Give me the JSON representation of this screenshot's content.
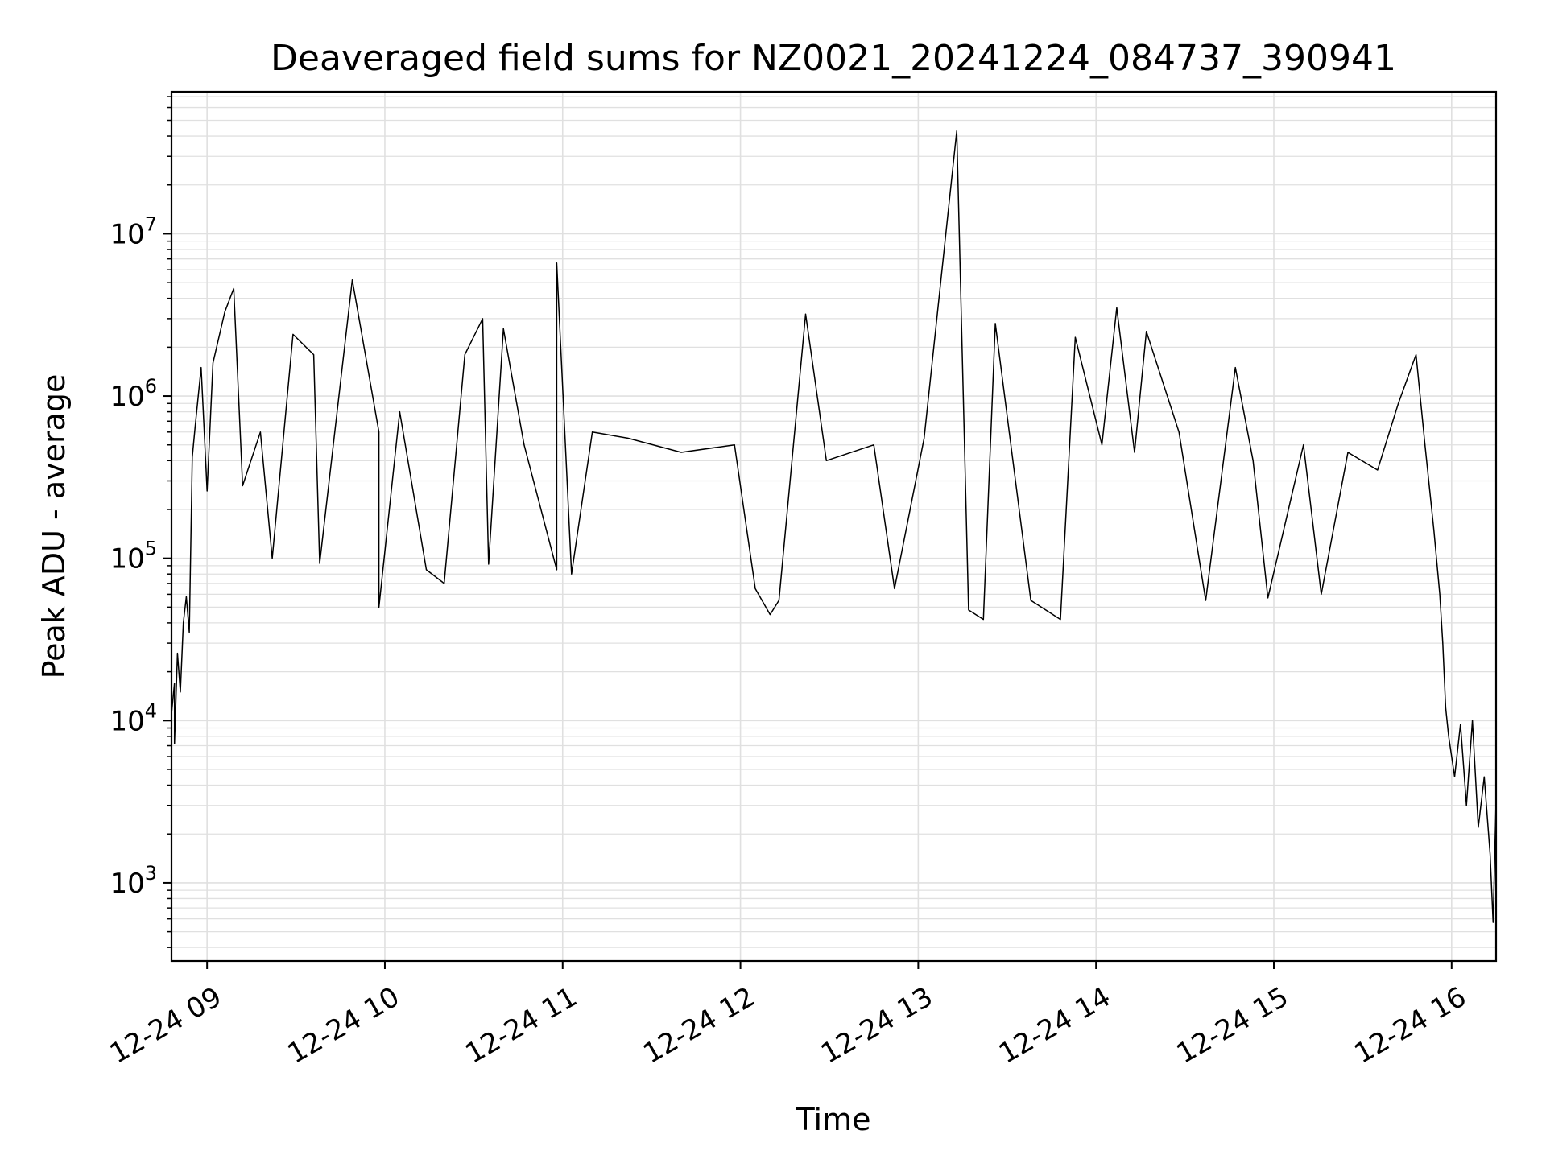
{
  "chart_data": {
    "type": "line",
    "title": "Deaveraged field sums for NZ0021_20241224_084737_390941",
    "xlabel": "Time",
    "ylabel": "Peak ADU - average",
    "yscale": "log",
    "ylim": [
      330,
      75000000
    ],
    "xlim": [
      "2024-12-24 08:48",
      "2024-12-24 16:15"
    ],
    "grid": true,
    "line_color": "#000000",
    "grid_color": "#e0e0e0",
    "x_ticks": [
      {
        "value": "2024-12-24 09:00",
        "label": "12-24 09"
      },
      {
        "value": "2024-12-24 10:00",
        "label": "12-24 10"
      },
      {
        "value": "2024-12-24 11:00",
        "label": "12-24 11"
      },
      {
        "value": "2024-12-24 12:00",
        "label": "12-24 12"
      },
      {
        "value": "2024-12-24 13:00",
        "label": "12-24 13"
      },
      {
        "value": "2024-12-24 14:00",
        "label": "12-24 14"
      },
      {
        "value": "2024-12-24 15:00",
        "label": "12-24 15"
      },
      {
        "value": "2024-12-24 16:00",
        "label": "12-24 16"
      }
    ],
    "y_ticks": [
      {
        "value": 1000,
        "base": "10",
        "exp": "3"
      },
      {
        "value": 10000,
        "base": "10",
        "exp": "4"
      },
      {
        "value": 100000,
        "base": "10",
        "exp": "5"
      },
      {
        "value": 1000000,
        "base": "10",
        "exp": "6"
      },
      {
        "value": 10000000,
        "base": "10",
        "exp": "7"
      }
    ],
    "series": [
      {
        "points": [
          [
            "2024-12-24 08:48",
            11000
          ],
          [
            "2024-12-24 08:49",
            17000
          ],
          [
            "2024-12-24 08:49",
            7200
          ],
          [
            "2024-12-24 08:50",
            26000
          ],
          [
            "2024-12-24 08:51",
            15000
          ],
          [
            "2024-12-24 08:52",
            40000
          ],
          [
            "2024-12-24 08:53",
            58000
          ],
          [
            "2024-12-24 08:54",
            35000
          ],
          [
            "2024-12-24 08:55",
            420000
          ],
          [
            "2024-12-24 08:56",
            650000
          ],
          [
            "2024-12-24 08:58",
            1500000
          ],
          [
            "2024-12-24 09:00",
            260000
          ],
          [
            "2024-12-24 09:02",
            1600000
          ],
          [
            "2024-12-24 09:06",
            3300000
          ],
          [
            "2024-12-24 09:09",
            4600000
          ],
          [
            "2024-12-24 09:12",
            280000
          ],
          [
            "2024-12-24 09:18",
            600000
          ],
          [
            "2024-12-24 09:22",
            100000
          ],
          [
            "2024-12-24 09:29",
            2400000
          ],
          [
            "2024-12-24 09:36",
            1800000
          ],
          [
            "2024-12-24 09:38",
            93000
          ],
          [
            "2024-12-24 09:49",
            5200000
          ],
          [
            "2024-12-24 09:58",
            600000
          ],
          [
            "2024-12-24 09:58",
            50000
          ],
          [
            "2024-12-24 10:05",
            800000
          ],
          [
            "2024-12-24 10:14",
            85000
          ],
          [
            "2024-12-24 10:20",
            70000
          ],
          [
            "2024-12-24 10:27",
            1800000
          ],
          [
            "2024-12-24 10:33",
            3000000
          ],
          [
            "2024-12-24 10:35",
            92000
          ],
          [
            "2024-12-24 10:40",
            2600000
          ],
          [
            "2024-12-24 10:47",
            500000
          ],
          [
            "2024-12-24 10:58",
            85000
          ],
          [
            "2024-12-24 10:58",
            6600000
          ],
          [
            "2024-12-24 11:03",
            80000
          ],
          [
            "2024-12-24 11:10",
            600000
          ],
          [
            "2024-12-24 11:22",
            550000
          ],
          [
            "2024-12-24 11:40",
            450000
          ],
          [
            "2024-12-24 11:58",
            500000
          ],
          [
            "2024-12-24 12:05",
            65000
          ],
          [
            "2024-12-24 12:10",
            45000
          ],
          [
            "2024-12-24 12:13",
            55000
          ],
          [
            "2024-12-24 12:22",
            3200000
          ],
          [
            "2024-12-24 12:29",
            400000
          ],
          [
            "2024-12-24 12:45",
            500000
          ],
          [
            "2024-12-24 12:52",
            65000
          ],
          [
            "2024-12-24 13:02",
            550000
          ],
          [
            "2024-12-24 13:13",
            43000000
          ],
          [
            "2024-12-24 13:17",
            48000
          ],
          [
            "2024-12-24 13:22",
            42000
          ],
          [
            "2024-12-24 13:26",
            2800000
          ],
          [
            "2024-12-24 13:38",
            55000
          ],
          [
            "2024-12-24 13:48",
            42000
          ],
          [
            "2024-12-24 13:53",
            2300000
          ],
          [
            "2024-12-24 14:02",
            500000
          ],
          [
            "2024-12-24 14:07",
            3500000
          ],
          [
            "2024-12-24 14:13",
            450000
          ],
          [
            "2024-12-24 14:17",
            2500000
          ],
          [
            "2024-12-24 14:28",
            600000
          ],
          [
            "2024-12-24 14:37",
            55000
          ],
          [
            "2024-12-24 14:47",
            1500000
          ],
          [
            "2024-12-24 14:53",
            400000
          ],
          [
            "2024-12-24 14:58",
            57000
          ],
          [
            "2024-12-24 15:10",
            500000
          ],
          [
            "2024-12-24 15:16",
            60000
          ],
          [
            "2024-12-24 15:25",
            450000
          ],
          [
            "2024-12-24 15:35",
            350000
          ],
          [
            "2024-12-24 15:42",
            900000
          ],
          [
            "2024-12-24 15:48",
            1800000
          ],
          [
            "2024-12-24 15:51",
            500000
          ],
          [
            "2024-12-24 15:54",
            150000
          ],
          [
            "2024-12-24 15:56",
            60000
          ],
          [
            "2024-12-24 15:57",
            30000
          ],
          [
            "2024-12-24 15:58",
            12000
          ],
          [
            "2024-12-24 15:59",
            8000
          ],
          [
            "2024-12-24 16:01",
            4500
          ],
          [
            "2024-12-24 16:03",
            9500
          ],
          [
            "2024-12-24 16:05",
            3000
          ],
          [
            "2024-12-24 16:07",
            10000
          ],
          [
            "2024-12-24 16:09",
            2200
          ],
          [
            "2024-12-24 16:11",
            4500
          ],
          [
            "2024-12-24 16:13",
            1500
          ],
          [
            "2024-12-24 16:14",
            570
          ],
          [
            "2024-12-24 16:15",
            3200
          ]
        ]
      }
    ]
  }
}
